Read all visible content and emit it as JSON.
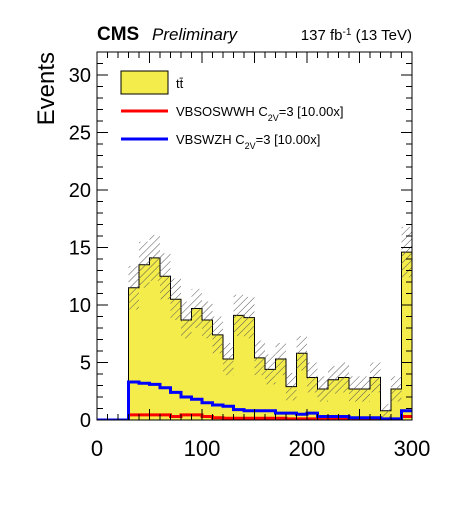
{
  "header": {
    "experiment": "CMS",
    "status": "Preliminary",
    "lumi_value": "137 fb",
    "lumi_exp": "-1",
    "lumi_energy": " (13 TeV)"
  },
  "colors": {
    "ttbar_fill": "#f4ec4a",
    "sig1": "#ff0000",
    "sig2": "#0000ff",
    "unc_hatch": "#555555"
  },
  "chart_data": {
    "type": "bar",
    "ylabel": "Events",
    "xlabel": "",
    "xlim": [
      0,
      300
    ],
    "ylim": [
      0,
      32
    ],
    "x_ticks": [
      0,
      100,
      200,
      300
    ],
    "y_ticks": [
      0,
      5,
      10,
      15,
      20,
      25,
      30
    ],
    "bin_edges": [
      0,
      10,
      20,
      30,
      40,
      50,
      60,
      70,
      80,
      90,
      100,
      110,
      120,
      130,
      140,
      150,
      160,
      170,
      180,
      190,
      200,
      210,
      220,
      230,
      240,
      250,
      260,
      270,
      280,
      290,
      300
    ],
    "legend": {
      "position": "top-left",
      "entries": [
        {
          "label": "tt̄",
          "style": "fill"
        },
        {
          "label": "VBSOSWWH C",
          "sub": "2V",
          "suffix": "=3 [10.00x]",
          "style": "line"
        },
        {
          "label": "VBSWZH C",
          "sub": "2V",
          "suffix": "=3 [10.00x]",
          "style": "line"
        }
      ]
    },
    "series": [
      {
        "name": "tt̄",
        "kind": "stacked-fill",
        "values": [
          0,
          0,
          0,
          11.5,
          13.5,
          14.1,
          12.5,
          10.5,
          8.7,
          9.7,
          8.7,
          7.4,
          5.3,
          9.1,
          8.9,
          5.4,
          4.4,
          5.3,
          2.9,
          5.8,
          3.7,
          2.7,
          3.5,
          3.7,
          2.7,
          2.7,
          3.7,
          0.8,
          2.7,
          14.6
        ],
        "uncertainty": [
          0,
          0,
          0,
          1.9,
          2.0,
          2.0,
          2.0,
          1.8,
          1.6,
          1.7,
          1.6,
          1.6,
          1.4,
          1.8,
          1.8,
          1.5,
          1.3,
          1.4,
          1.2,
          1.5,
          1.3,
          1.1,
          1.2,
          1.3,
          1.1,
          1.1,
          1.3,
          0.6,
          1.1,
          2.2
        ]
      },
      {
        "name": "VBSOSWWH C2V=3 [10.00x]",
        "kind": "line",
        "values": [
          0,
          0,
          0,
          0.45,
          0.45,
          0.45,
          0.45,
          0.3,
          0.45,
          0.45,
          0.3,
          0.2,
          0.15,
          0.15,
          0.15,
          0.15,
          0.15,
          0.15,
          0.1,
          0.1,
          0.1,
          0.1,
          0.1,
          0.1,
          0.1,
          0.1,
          0.1,
          0.05,
          0.05,
          0.3
        ]
      },
      {
        "name": "VBSWZH C2V=3 [10.00x]",
        "kind": "line",
        "values": [
          0,
          0,
          0,
          3.3,
          3.2,
          3.1,
          2.8,
          2.4,
          2.0,
          1.8,
          1.5,
          1.3,
          1.2,
          0.9,
          0.8,
          0.8,
          0.8,
          0.6,
          0.6,
          0.5,
          0.6,
          0.3,
          0.3,
          0.3,
          0.2,
          0.2,
          0.2,
          0.1,
          0.1,
          0.8
        ]
      }
    ]
  }
}
